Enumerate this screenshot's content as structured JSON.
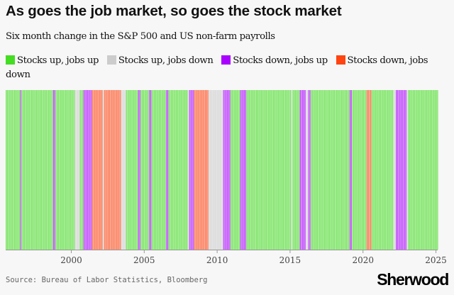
{
  "chart_data": {
    "type": "heatmap",
    "title": "As goes the job market, so goes the stock market",
    "subtitle": "Six month change in the S&P 500 and US non-farm payrolls",
    "legend": [
      {
        "key": "up_up",
        "label": "Stocks up, jobs up",
        "color": "#44dd22"
      },
      {
        "key": "up_down",
        "label": "Stocks up, jobs down",
        "color": "#cccccc"
      },
      {
        "key": "down_up",
        "label": "Stocks down, jobs up",
        "color": "#aa00ff"
      },
      {
        "key": "down_down",
        "label": "Stocks down, jobs down",
        "color": "#ff4411"
      }
    ],
    "legend_placement": "top",
    "x_ticks": [
      "2000",
      "2005",
      "2010",
      "2015",
      "2020",
      "2025"
    ],
    "xlim": [
      "1995-07",
      "2025-02"
    ],
    "runs": [
      [
        "1995-07",
        "1996-06",
        "up_up"
      ],
      [
        "1996-07",
        "1996-07",
        "down_up"
      ],
      [
        "1996-08",
        "1998-09",
        "up_up"
      ],
      [
        "1998-10",
        "1998-11",
        "down_up"
      ],
      [
        "1998-12",
        "2000-03",
        "up_up"
      ],
      [
        "2000-04",
        "2000-07",
        "up_down"
      ],
      [
        "2000-08",
        "2000-10",
        "up_up"
      ],
      [
        "2000-11",
        "2001-05",
        "down_up"
      ],
      [
        "2001-06",
        "2002-02",
        "down_down"
      ],
      [
        "2002-03",
        "2002-03",
        "up_down"
      ],
      [
        "2002-04",
        "2003-05",
        "down_down"
      ],
      [
        "2003-06",
        "2003-09",
        "up_down"
      ],
      [
        "2003-10",
        "2004-07",
        "up_up"
      ],
      [
        "2004-08",
        "2004-09",
        "down_up"
      ],
      [
        "2004-10",
        "2005-04",
        "up_up"
      ],
      [
        "2005-05",
        "2005-06",
        "down_up"
      ],
      [
        "2005-07",
        "2006-06",
        "up_up"
      ],
      [
        "2006-07",
        "2006-08",
        "down_up"
      ],
      [
        "2006-09",
        "2007-12",
        "up_up"
      ],
      [
        "2008-01",
        "2008-01",
        "up_down"
      ],
      [
        "2008-02",
        "2008-05",
        "down_up"
      ],
      [
        "2008-06",
        "2009-05",
        "down_down"
      ],
      [
        "2009-06",
        "2010-05",
        "up_down"
      ],
      [
        "2010-06",
        "2010-11",
        "down_up"
      ],
      [
        "2010-12",
        "2011-07",
        "up_up"
      ],
      [
        "2011-08",
        "2011-12",
        "down_up"
      ],
      [
        "2012-01",
        "2015-01",
        "up_up"
      ],
      [
        "2015-02",
        "2015-02",
        "up_down"
      ],
      [
        "2015-03",
        "2015-08",
        "up_up"
      ],
      [
        "2015-09",
        "2016-01",
        "down_up"
      ],
      [
        "2016-02",
        "2016-03",
        "up_down"
      ],
      [
        "2016-04",
        "2016-05",
        "down_up"
      ],
      [
        "2016-06",
        "2019-01",
        "up_up"
      ],
      [
        "2019-02",
        "2019-03",
        "down_up"
      ],
      [
        "2019-04",
        "2020-03",
        "up_up"
      ],
      [
        "2020-04",
        "2020-07",
        "down_down"
      ],
      [
        "2020-08",
        "2022-01",
        "up_up"
      ],
      [
        "2022-02",
        "2022-03",
        "up_down"
      ],
      [
        "2022-04",
        "2022-12",
        "down_up"
      ],
      [
        "2023-01",
        "2023-01",
        "up_down"
      ],
      [
        "2023-02",
        "2025-02",
        "up_up"
      ]
    ]
  },
  "source": "Source: Bureau of Labor Statistics, Bloomberg",
  "logo": "Sherwood"
}
